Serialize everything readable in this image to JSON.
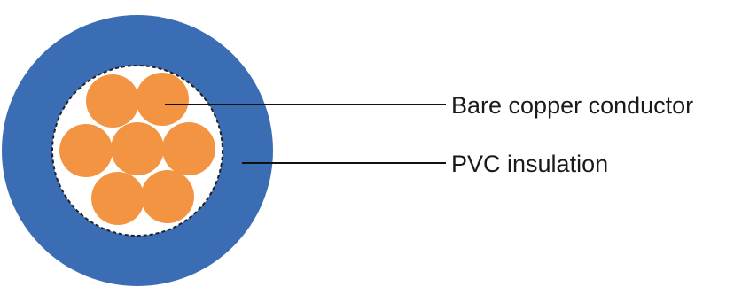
{
  "diagram": {
    "labels": {
      "conductor": "Bare copper conductor",
      "insulation": "PVC insulation"
    }
  },
  "colors": {
    "insulation": "#3a6db3",
    "conductor_strand": "#f39443",
    "core_background": "#ffffff",
    "leader_line": "#111111",
    "boundary_dash": "#222222"
  }
}
